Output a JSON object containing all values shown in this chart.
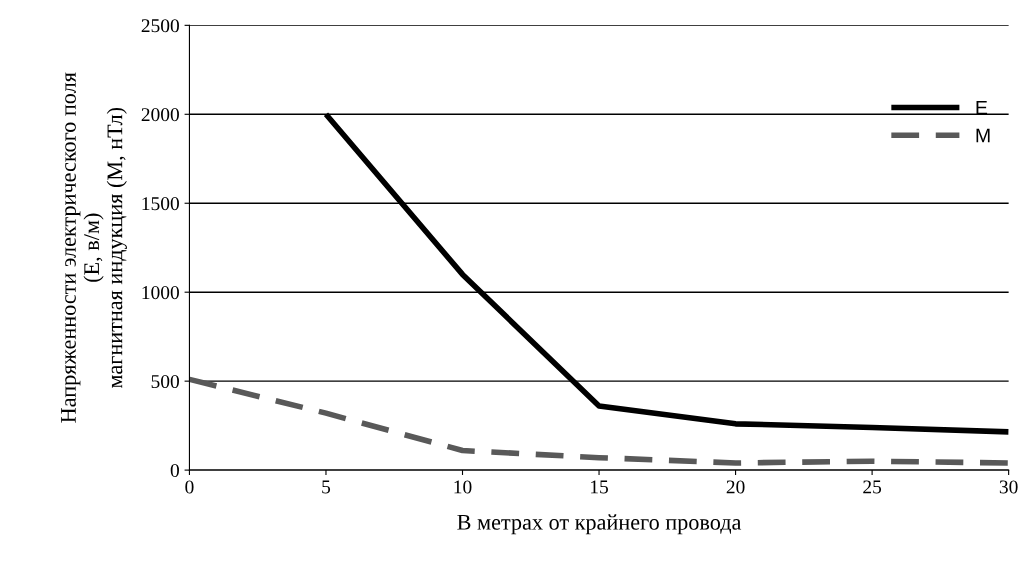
{
  "chart_data": {
    "type": "line",
    "xlabel": "В метрах от крайнего провода",
    "ylabel": "Напряженности электрического поля\n(E, в/м)\nмагнитная индукция (M, нТл)",
    "series": [
      {
        "name": "E",
        "color": "#000000",
        "line_style": "solid",
        "x": [
          5,
          10,
          15,
          20,
          25,
          30
        ],
        "values": [
          2000,
          1100,
          360,
          260,
          240,
          215
        ]
      },
      {
        "name": "M",
        "color": "#595959",
        "line_style": "dashed",
        "x": [
          0,
          5,
          10,
          15,
          20,
          25,
          30
        ],
        "values": [
          510,
          320,
          110,
          70,
          40,
          50,
          40
        ]
      }
    ],
    "xlim": [
      0,
      30
    ],
    "xticks": [
      0,
      5,
      10,
      15,
      20,
      25,
      30
    ],
    "ylim": [
      0,
      2500
    ],
    "yticks": [
      0,
      500,
      1000,
      1500,
      2000,
      2500
    ],
    "grid": "y",
    "legend": "right",
    "marker": "none"
  }
}
